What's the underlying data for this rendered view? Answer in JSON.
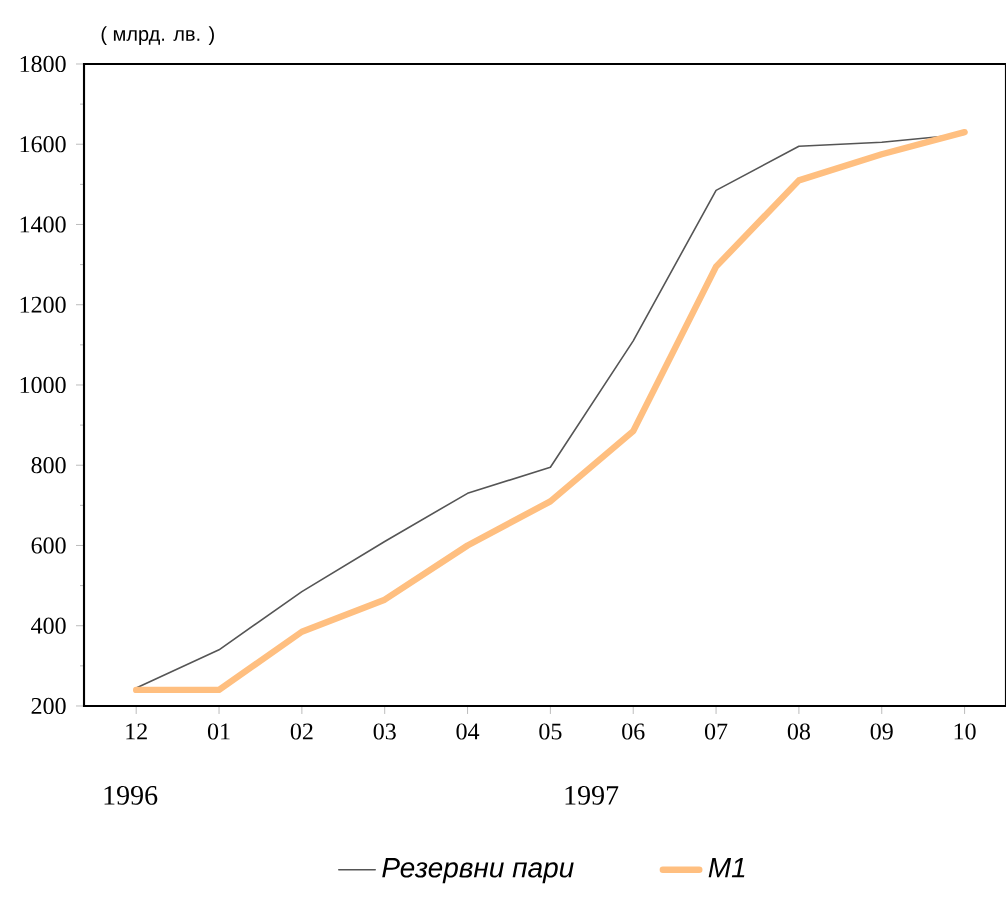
{
  "chart_data": {
    "type": "line",
    "ylabel": "( млрд. лв. )",
    "categories": [
      "12",
      "01",
      "02",
      "03",
      "04",
      "05",
      "06",
      "07",
      "08",
      "09",
      "10"
    ],
    "series": [
      {
        "name": "Резервни пари",
        "color": "#555555",
        "values": [
          245,
          340,
          485,
          610,
          730,
          795,
          1110,
          1485,
          1595,
          1605,
          1625
        ]
      },
      {
        "name": "M1",
        "color": "#ffbf80",
        "values": [
          240,
          240,
          385,
          465,
          600,
          710,
          885,
          1295,
          1510,
          1575,
          1630
        ]
      }
    ],
    "ylim": [
      200,
      1800
    ],
    "yticks": [
      200,
      400,
      600,
      800,
      1000,
      1200,
      1400,
      1600,
      1800
    ],
    "annotations": [
      "1996",
      "1997"
    ],
    "legend": "bottom",
    "line_style": "solid"
  }
}
